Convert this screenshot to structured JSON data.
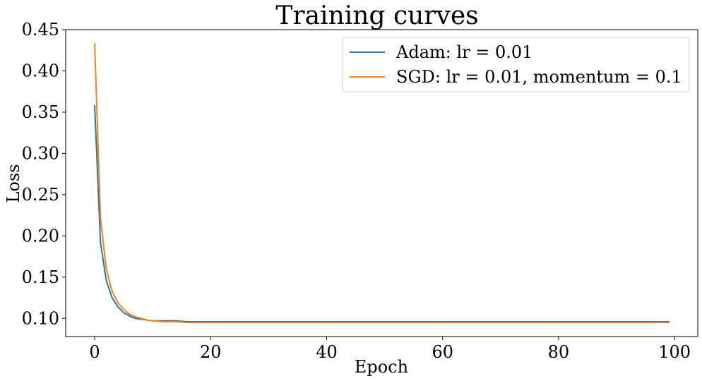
{
  "chart_data": {
    "type": "line",
    "title": "Training curves",
    "xlabel": "Epoch",
    "ylabel": "Loss",
    "xlim": [
      -5,
      104
    ],
    "ylim": [
      0.078,
      0.45
    ],
    "xticks": [
      0,
      20,
      40,
      60,
      80,
      100
    ],
    "yticks": [
      0.1,
      0.15,
      0.2,
      0.25,
      0.3,
      0.35,
      0.4,
      0.45
    ],
    "xtick_labels": [
      "0",
      "20",
      "40",
      "60",
      "80",
      "100"
    ],
    "ytick_labels": [
      "0.10",
      "0.15",
      "0.20",
      "0.25",
      "0.30",
      "0.35",
      "0.40",
      "0.45"
    ],
    "grid": false,
    "legend_position": "top-right",
    "series": [
      {
        "name": "Adam: lr = 0.01",
        "color": "#1f77b4",
        "x": [
          0,
          1,
          2,
          3,
          4,
          5,
          6,
          7,
          8,
          9,
          10,
          12,
          14,
          16,
          18,
          20,
          25,
          30,
          40,
          50,
          60,
          70,
          80,
          90,
          99
        ],
        "y": [
          0.358,
          0.192,
          0.146,
          0.125,
          0.114,
          0.107,
          0.103,
          0.1,
          0.099,
          0.098,
          0.097,
          0.097,
          0.097,
          0.096,
          0.096,
          0.096,
          0.096,
          0.096,
          0.096,
          0.096,
          0.096,
          0.096,
          0.096,
          0.096,
          0.096
        ]
      },
      {
        "name": "SGD: lr = 0.01, momentum = 0.1",
        "color": "#ff7f0e",
        "x": [
          0,
          1,
          2,
          3,
          4,
          5,
          6,
          7,
          8,
          9,
          10,
          12,
          14,
          16,
          18,
          20,
          25,
          30,
          40,
          50,
          60,
          70,
          80,
          90,
          99
        ],
        "y": [
          0.433,
          0.222,
          0.16,
          0.133,
          0.119,
          0.111,
          0.105,
          0.102,
          0.1,
          0.098,
          0.097,
          0.096,
          0.096,
          0.095,
          0.095,
          0.095,
          0.095,
          0.095,
          0.095,
          0.095,
          0.095,
          0.095,
          0.095,
          0.095,
          0.095
        ]
      }
    ]
  }
}
